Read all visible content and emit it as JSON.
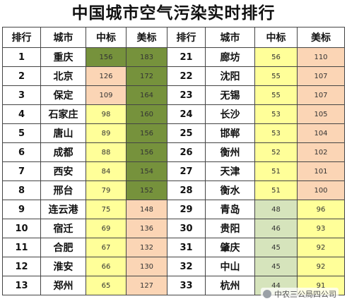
{
  "title": "中国城市空气污染实时排行",
  "headers": [
    "排行",
    "城市",
    "中标",
    "美标",
    "排行",
    "城市",
    "中标",
    "美标"
  ],
  "colors": {
    "dark_green": "#76923c",
    "light_green": "#d6e4bc",
    "yellow": "#ffff99",
    "peach": "#fbd5b5",
    "border": "#444444"
  },
  "rows": [
    {
      "left": {
        "rank": "1",
        "city": "重庆",
        "cn": "156",
        "cn_c": "dark_green",
        "us": "183",
        "us_c": "dark_green"
      },
      "right": {
        "rank": "21",
        "city": "廊坊",
        "cn": "56",
        "cn_c": "yellow",
        "us": "110",
        "us_c": "peach"
      }
    },
    {
      "left": {
        "rank": "2",
        "city": "北京",
        "cn": "126",
        "cn_c": "peach",
        "us": "172",
        "us_c": "dark_green"
      },
      "right": {
        "rank": "22",
        "city": "沈阳",
        "cn": "55",
        "cn_c": "yellow",
        "us": "107",
        "us_c": "peach"
      }
    },
    {
      "left": {
        "rank": "3",
        "city": "保定",
        "cn": "109",
        "cn_c": "peach",
        "us": "164",
        "us_c": "dark_green"
      },
      "right": {
        "rank": "23",
        "city": "无锡",
        "cn": "55",
        "cn_c": "yellow",
        "us": "107",
        "us_c": "peach"
      }
    },
    {
      "left": {
        "rank": "4",
        "city": "石家庄",
        "cn": "98",
        "cn_c": "yellow",
        "us": "160",
        "us_c": "dark_green"
      },
      "right": {
        "rank": "24",
        "city": "长沙",
        "cn": "53",
        "cn_c": "yellow",
        "us": "105",
        "us_c": "peach"
      }
    },
    {
      "left": {
        "rank": "5",
        "city": "唐山",
        "cn": "89",
        "cn_c": "yellow",
        "us": "156",
        "us_c": "dark_green"
      },
      "right": {
        "rank": "25",
        "city": "邯郸",
        "cn": "53",
        "cn_c": "yellow",
        "us": "104",
        "us_c": "peach"
      }
    },
    {
      "left": {
        "rank": "6",
        "city": "成都",
        "cn": "88",
        "cn_c": "yellow",
        "us": "156",
        "us_c": "dark_green"
      },
      "right": {
        "rank": "26",
        "city": "衡州",
        "cn": "52",
        "cn_c": "yellow",
        "us": "102",
        "us_c": "peach"
      }
    },
    {
      "left": {
        "rank": "7",
        "city": "西安",
        "cn": "84",
        "cn_c": "yellow",
        "us": "154",
        "us_c": "dark_green"
      },
      "right": {
        "rank": "27",
        "city": "天津",
        "cn": "51",
        "cn_c": "yellow",
        "us": "101",
        "us_c": "peach"
      }
    },
    {
      "left": {
        "rank": "8",
        "city": "邢台",
        "cn": "79",
        "cn_c": "yellow",
        "us": "152",
        "us_c": "dark_green"
      },
      "right": {
        "rank": "28",
        "city": "衡水",
        "cn": "51",
        "cn_c": "yellow",
        "us": "100",
        "us_c": "peach"
      }
    },
    {
      "left": {
        "rank": "9",
        "city": "连云港",
        "cn": "75",
        "cn_c": "yellow",
        "us": "148",
        "us_c": "peach"
      },
      "right": {
        "rank": "29",
        "city": "青岛",
        "cn": "48",
        "cn_c": "light_green",
        "us": "96",
        "us_c": "yellow"
      }
    },
    {
      "left": {
        "rank": "10",
        "city": "宿迁",
        "cn": "69",
        "cn_c": "yellow",
        "us": "136",
        "us_c": "peach"
      },
      "right": {
        "rank": "30",
        "city": "贵阳",
        "cn": "46",
        "cn_c": "light_green",
        "us": "93",
        "us_c": "yellow"
      }
    },
    {
      "left": {
        "rank": "11",
        "city": "合肥",
        "cn": "67",
        "cn_c": "yellow",
        "us": "132",
        "us_c": "peach"
      },
      "right": {
        "rank": "31",
        "city": "肇庆",
        "cn": "45",
        "cn_c": "light_green",
        "us": "92",
        "us_c": "yellow"
      }
    },
    {
      "left": {
        "rank": "12",
        "city": "淮安",
        "cn": "66",
        "cn_c": "yellow",
        "us": "130",
        "us_c": "peach"
      },
      "right": {
        "rank": "32",
        "city": "中山",
        "cn": "45",
        "cn_c": "light_green",
        "us": "92",
        "us_c": "yellow"
      }
    },
    {
      "left": {
        "rank": "13",
        "city": "郑州",
        "cn": "65",
        "cn_c": "yellow",
        "us": "127",
        "us_c": "peach"
      },
      "right": {
        "rank": "33",
        "city": "杭州",
        "cn": "44",
        "cn_c": "light_green",
        "us": "91",
        "us_c": "yellow"
      }
    }
  ],
  "watermark": "中农三公局四公司"
}
